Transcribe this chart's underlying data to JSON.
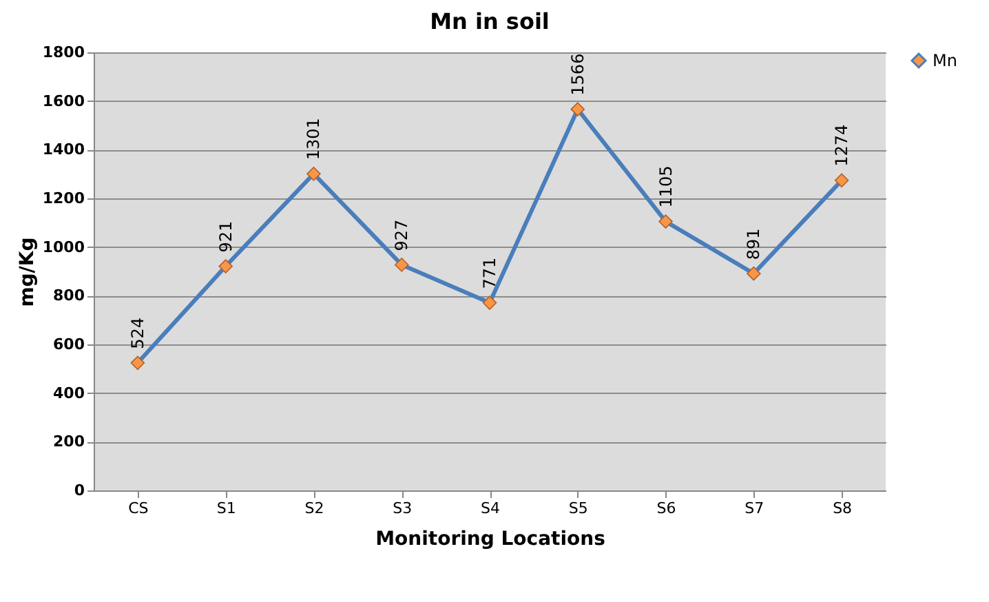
{
  "chart_data": {
    "type": "line",
    "title": "Mn in soil",
    "xlabel": "Monitoring Locations",
    "ylabel": "mg/Kg",
    "categories": [
      "CS",
      "S1",
      "S2",
      "S3",
      "S4",
      "S5",
      "S6",
      "S7",
      "S8"
    ],
    "series": [
      {
        "name": "Mn",
        "color": "#4a7ebb",
        "values": [
          524,
          921,
          1301,
          927,
          771,
          1566,
          1105,
          891,
          1274
        ]
      }
    ],
    "ylim": [
      0,
      1800
    ],
    "yticks": [
      0,
      200,
      400,
      600,
      800,
      1000,
      1200,
      1400,
      1600,
      1800
    ],
    "grid": "y",
    "legend": "right",
    "marker": "diamond",
    "line_style": "solid",
    "data_labels": true
  }
}
